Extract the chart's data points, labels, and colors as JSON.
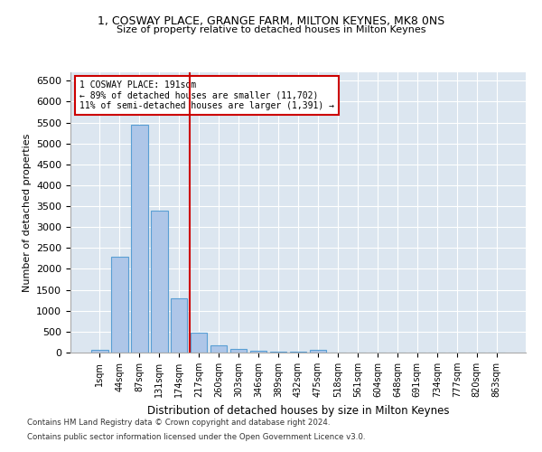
{
  "title1": "1, COSWAY PLACE, GRANGE FARM, MILTON KEYNES, MK8 0NS",
  "title2": "Size of property relative to detached houses in Milton Keynes",
  "xlabel": "Distribution of detached houses by size in Milton Keynes",
  "ylabel": "Number of detached properties",
  "categories": [
    "1sqm",
    "44sqm",
    "87sqm",
    "131sqm",
    "174sqm",
    "217sqm",
    "260sqm",
    "303sqm",
    "346sqm",
    "389sqm",
    "432sqm",
    "475sqm",
    "518sqm",
    "561sqm",
    "604sqm",
    "648sqm",
    "691sqm",
    "734sqm",
    "777sqm",
    "820sqm",
    "863sqm"
  ],
  "values": [
    75,
    2300,
    5450,
    3400,
    1300,
    480,
    165,
    90,
    50,
    30,
    20,
    55,
    10,
    5,
    3,
    2,
    2,
    1,
    1,
    1,
    1
  ],
  "bar_color": "#aec6e8",
  "bar_edge_color": "#5a9fd4",
  "red_line_x": 4.55,
  "annotation_text": "1 COSWAY PLACE: 191sqm\n← 89% of detached houses are smaller (11,702)\n11% of semi-detached houses are larger (1,391) →",
  "annotation_box_color": "#ffffff",
  "annotation_box_edge": "#cc0000",
  "red_line_color": "#cc0000",
  "ylim": [
    0,
    6700
  ],
  "bg_color": "#dce6f0",
  "footnote1": "Contains HM Land Registry data © Crown copyright and database right 2024.",
  "footnote2": "Contains public sector information licensed under the Open Government Licence v3.0."
}
